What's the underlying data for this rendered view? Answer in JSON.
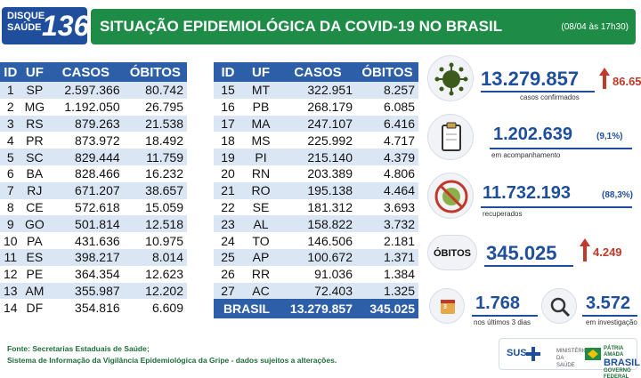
{
  "header": {
    "logo_line1": "DISQUE",
    "logo_line2": "SAÚDE",
    "logo_number": "136",
    "title": "SITUAÇÃO EPIDEMIOLÓGICA DA COVID-19 NO BRASIL",
    "date": "(08/04 às 17h30)"
  },
  "table_headers": {
    "id": "ID",
    "uf": "UF",
    "casos": "CASOS",
    "obitos": "ÓBITOS"
  },
  "table_left": [
    {
      "id": "1",
      "uf": "SP",
      "casos": "2.597.366",
      "obitos": "80.742"
    },
    {
      "id": "2",
      "uf": "MG",
      "casos": "1.192.050",
      "obitos": "26.795"
    },
    {
      "id": "3",
      "uf": "RS",
      "casos": "879.263",
      "obitos": "21.538"
    },
    {
      "id": "4",
      "uf": "PR",
      "casos": "873.972",
      "obitos": "18.492"
    },
    {
      "id": "5",
      "uf": "SC",
      "casos": "829.444",
      "obitos": "11.759"
    },
    {
      "id": "6",
      "uf": "BA",
      "casos": "828.466",
      "obitos": "16.232"
    },
    {
      "id": "7",
      "uf": "RJ",
      "casos": "671.207",
      "obitos": "38.657"
    },
    {
      "id": "8",
      "uf": "CE",
      "casos": "572.618",
      "obitos": "15.059"
    },
    {
      "id": "9",
      "uf": "GO",
      "casos": "501.814",
      "obitos": "12.518"
    },
    {
      "id": "10",
      "uf": "PA",
      "casos": "431.636",
      "obitos": "10.975"
    },
    {
      "id": "11",
      "uf": "ES",
      "casos": "398.217",
      "obitos": "8.014"
    },
    {
      "id": "12",
      "uf": "PE",
      "casos": "364.354",
      "obitos": "12.623"
    },
    {
      "id": "13",
      "uf": "AM",
      "casos": "355.987",
      "obitos": "12.202"
    },
    {
      "id": "14",
      "uf": "DF",
      "casos": "354.816",
      "obitos": "6.609"
    }
  ],
  "table_right": [
    {
      "id": "15",
      "uf": "MT",
      "casos": "322.951",
      "obitos": "8.257"
    },
    {
      "id": "16",
      "uf": "PB",
      "casos": "268.179",
      "obitos": "6.085"
    },
    {
      "id": "17",
      "uf": "MA",
      "casos": "247.107",
      "obitos": "6.416"
    },
    {
      "id": "18",
      "uf": "MS",
      "casos": "225.992",
      "obitos": "4.717"
    },
    {
      "id": "19",
      "uf": "PI",
      "casos": "215.140",
      "obitos": "4.379"
    },
    {
      "id": "20",
      "uf": "RN",
      "casos": "203.389",
      "obitos": "4.806"
    },
    {
      "id": "21",
      "uf": "RO",
      "casos": "195.138",
      "obitos": "4.464"
    },
    {
      "id": "22",
      "uf": "SE",
      "casos": "181.312",
      "obitos": "3.693"
    },
    {
      "id": "23",
      "uf": "AL",
      "casos": "158.822",
      "obitos": "3.732"
    },
    {
      "id": "24",
      "uf": "TO",
      "casos": "146.506",
      "obitos": "2.181"
    },
    {
      "id": "25",
      "uf": "AP",
      "casos": "100.672",
      "obitos": "1.371"
    },
    {
      "id": "26",
      "uf": "RR",
      "casos": "91.036",
      "obitos": "1.384"
    },
    {
      "id": "27",
      "uf": "AC",
      "casos": "72.403",
      "obitos": "1.325"
    }
  ],
  "total": {
    "label": "BRASIL",
    "casos": "13.279.857",
    "obitos": "345.025"
  },
  "stats": {
    "confirmados": {
      "value": "13.279.857",
      "delta": "86.65",
      "caption": "casos confirmados"
    },
    "acompanhamento": {
      "value": "1.202.639",
      "pct": "(9,1%)",
      "caption": "em acompanhamento"
    },
    "recuperados": {
      "value": "11.732.193",
      "pct": "(88,3%)",
      "caption": "recuperados"
    },
    "obitos": {
      "badge": "ÓBITOS",
      "value": "345.025",
      "delta": "4.249"
    },
    "ultimos": {
      "value": "1.768",
      "caption": "nos últimos 3 dias",
      "badge_num": "3"
    },
    "investigacao": {
      "value": "3.572",
      "caption": "em investigação"
    }
  },
  "footer": {
    "line1": "Fonte: Secretarias Estaduais de Saúde;",
    "line2": "Sistema de Informação da Vigilância Epidemiológica da Gripe - dados sujeitos a alterações."
  },
  "logos": {
    "sus": "SUS",
    "ministerio": "MINISTÉRIO DA SAÚDE",
    "patria_line1": "PÁTRIA AMADA",
    "patria_line2": "BRASIL",
    "patria_line3": "GOVERNO FEDERAL"
  },
  "colors": {
    "blue": "#1f4f9c",
    "green": "#1e8c47",
    "red": "#c0392b",
    "row_alt": "#dbe6f4"
  }
}
